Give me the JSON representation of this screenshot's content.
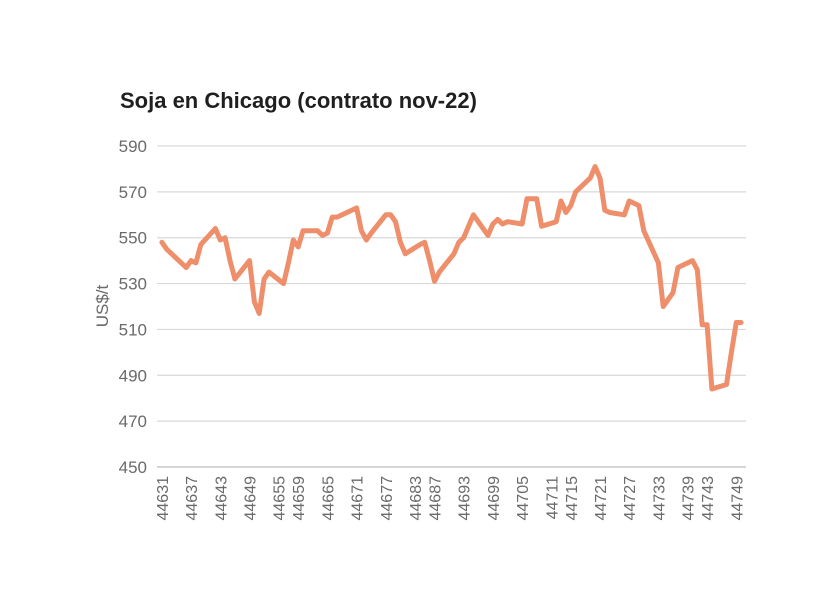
{
  "chart_data": {
    "type": "line",
    "title": "Soja en Chicago (contrato nov-22)",
    "xlabel": "",
    "ylabel": "US$/t",
    "ylim": [
      450,
      590
    ],
    "yticks": [
      450,
      470,
      490,
      510,
      530,
      550,
      570,
      590
    ],
    "xticks": [
      44631,
      44637,
      44643,
      44649,
      44655,
      44659,
      44665,
      44671,
      44677,
      44683,
      44687,
      44693,
      44699,
      44705,
      44711,
      44715,
      44721,
      44727,
      44733,
      44739,
      44743,
      44749
    ],
    "grid": "horizontal",
    "line_color": "#EE8E6A",
    "series": [
      {
        "name": "",
        "x": [
          44631,
          44632,
          44635,
          44636,
          44637,
          44638,
          44639,
          44642,
          44643,
          44644,
          44645,
          44646,
          44649,
          44650,
          44651,
          44652,
          44653,
          44656,
          44657,
          44658,
          44659,
          44660,
          44663,
          44664,
          44665,
          44666,
          44667,
          44670,
          44671,
          44672,
          44673,
          44674,
          44677,
          44678,
          44679,
          44680,
          44681,
          44684,
          44685,
          44686,
          44687,
          44688,
          44691,
          44692,
          44693,
          44694,
          44695,
          44698,
          44699,
          44700,
          44701,
          44702,
          44705,
          44706,
          44707,
          44708,
          44709,
          44712,
          44713,
          44714,
          44715,
          44716,
          44719,
          44720,
          44721,
          44722,
          44723,
          44726,
          44727,
          44728,
          44729,
          44730,
          44733,
          44734,
          44735,
          44736,
          44737,
          44740,
          44741,
          44742,
          44743,
          44744,
          44747,
          44748,
          44749,
          44750
        ],
        "values": [
          548,
          545,
          539,
          537,
          540,
          539,
          547,
          554,
          549,
          550,
          540,
          532,
          540,
          522,
          517,
          532,
          535,
          530,
          539,
          549,
          546,
          553,
          553,
          551,
          552,
          559,
          559,
          562,
          563,
          553,
          549,
          552,
          560,
          560,
          557,
          548,
          543,
          547,
          548,
          540,
          531,
          535,
          543,
          548,
          550,
          555,
          560,
          551,
          556,
          558,
          556,
          557,
          556,
          567,
          567,
          567,
          555,
          557,
          566,
          561,
          564,
          570,
          576,
          581,
          576,
          562,
          561,
          560,
          566,
          565,
          564,
          553,
          539,
          520,
          523,
          526,
          537,
          540,
          536,
          512,
          512,
          484,
          486,
          500,
          513,
          513
        ]
      }
    ]
  }
}
